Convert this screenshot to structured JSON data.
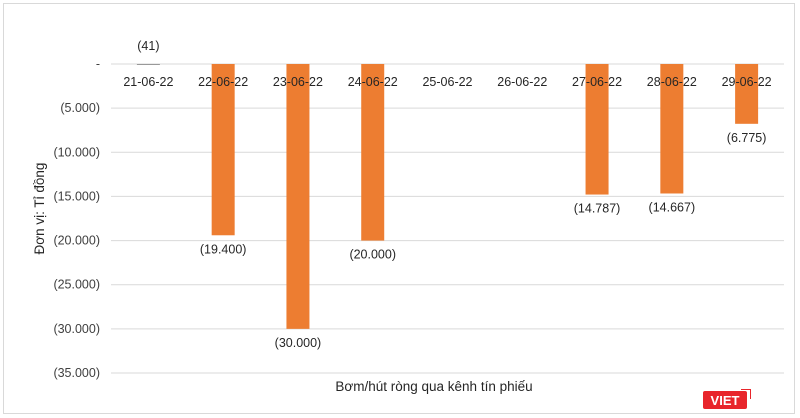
{
  "chart_data": {
    "type": "bar",
    "categories": [
      "21-06-22",
      "22-06-22",
      "23-06-22",
      "24-06-22",
      "25-06-22",
      "26-06-22",
      "27-06-22",
      "28-06-22",
      "29-06-22"
    ],
    "values": [
      -41,
      -19400,
      -30000,
      -20000,
      0,
      0,
      -14787,
      -14667,
      -6775
    ],
    "data_labels": [
      "(41)",
      "(19.400)",
      "(30.000)",
      "(20.000)",
      "",
      "",
      "(14.787)",
      "(14.667)",
      "(6.775)"
    ],
    "ylim": [
      -35000,
      0
    ],
    "yticks": [
      0,
      -5000,
      -10000,
      -15000,
      -20000,
      -25000,
      -30000,
      -35000
    ],
    "ytick_labels": [
      "-",
      "(5.000)",
      "(10.000)",
      "(15.000)",
      "(20.000)",
      "(25.000)",
      "(30.000)",
      "(35.000)"
    ],
    "ylabel": "Đơn vị: Tỉ đồng",
    "xlabel": "Bơm/hút ròng qua kênh tín phiếu",
    "grid": true,
    "bar_color": "#ED7D31",
    "grid_color": "#d9d9d9"
  },
  "logo": {
    "text": "VIET",
    "color": "#e8252b"
  }
}
